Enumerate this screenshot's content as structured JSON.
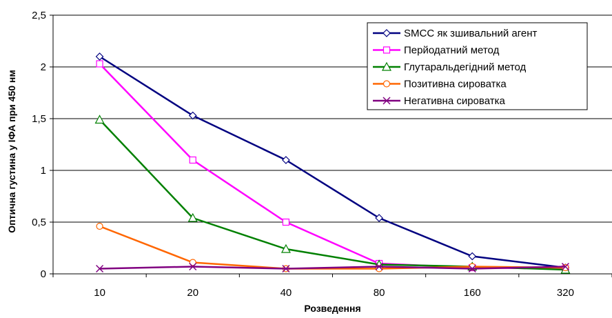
{
  "chart_data": {
    "type": "line",
    "categories": [
      "10",
      "20",
      "40",
      "80",
      "160",
      "320"
    ],
    "xlabel": "Розведення",
    "ylabel": "Оптична густина у ІФА при 450 нм",
    "ylim": [
      0,
      2.5
    ],
    "yticks": [
      "0",
      "0,5",
      "1",
      "1,5",
      "2",
      "2,5"
    ],
    "grid": "horizontal",
    "legend_position": "top-right",
    "series": [
      {
        "name": "SMCC як зшивальний агент",
        "values": [
          2.1,
          1.53,
          1.1,
          0.54,
          0.17,
          0.06
        ],
        "color": "#000080",
        "marker": "diamond"
      },
      {
        "name": "Перйодатний метод",
        "values": [
          2.03,
          1.1,
          0.5,
          0.1,
          0.06,
          0.05
        ],
        "color": "#ff00ff",
        "marker": "square"
      },
      {
        "name": "Глутаральдегідний метод",
        "values": [
          1.49,
          0.54,
          0.24,
          0.09,
          0.07,
          0.04
        ],
        "color": "#008000",
        "marker": "triangle"
      },
      {
        "name": "Позитивна сироватка",
        "values": [
          0.46,
          0.11,
          0.05,
          0.05,
          0.07,
          0.06
        ],
        "color": "#ff6600",
        "marker": "circle"
      },
      {
        "name": "Негативна сироватка",
        "values": [
          0.05,
          0.07,
          0.05,
          0.07,
          0.05,
          0.07
        ],
        "color": "#800080",
        "marker": "x"
      }
    ]
  }
}
